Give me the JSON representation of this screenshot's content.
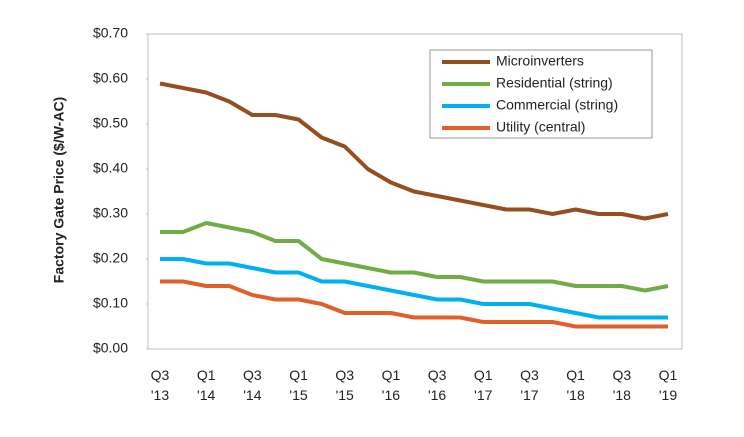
{
  "chart_data": {
    "type": "line",
    "y_label": "Factory Gate Price ($/W-AC)",
    "categories": [
      "Q3 '13",
      null,
      "Q1 '14",
      null,
      "Q3 '14",
      null,
      "Q1 '15",
      null,
      "Q3 '15",
      null,
      "Q1 '16",
      null,
      "Q3 '16",
      null,
      "Q1 '17",
      null,
      "Q3 '17",
      null,
      "Q1 '18",
      null,
      "Q3 '18",
      null,
      "Q1 '19"
    ],
    "series": [
      {
        "name": "Microinverters",
        "color": "#954f1f",
        "values": [
          0.59,
          0.58,
          0.57,
          0.55,
          0.52,
          0.52,
          0.51,
          0.47,
          0.45,
          0.4,
          0.37,
          0.35,
          0.34,
          0.33,
          0.32,
          0.31,
          0.31,
          0.3,
          0.31,
          0.3,
          0.3,
          0.29,
          0.3
        ]
      },
      {
        "name": "Residential (string)",
        "color": "#70ad47",
        "values": [
          0.26,
          0.26,
          0.28,
          0.27,
          0.26,
          0.24,
          0.24,
          0.2,
          0.19,
          0.18,
          0.17,
          0.17,
          0.16,
          0.16,
          0.15,
          0.15,
          0.15,
          0.15,
          0.14,
          0.14,
          0.14,
          0.13,
          0.14
        ]
      },
      {
        "name": "Commercial (string)",
        "color": "#00b0f0",
        "values": [
          0.2,
          0.2,
          0.19,
          0.19,
          0.18,
          0.17,
          0.17,
          0.15,
          0.15,
          0.14,
          0.13,
          0.12,
          0.11,
          0.11,
          0.1,
          0.1,
          0.1,
          0.09,
          0.08,
          0.07,
          0.07,
          0.07,
          0.07
        ]
      },
      {
        "name": "Utility (central)",
        "color": "#e0602a",
        "values": [
          0.15,
          0.15,
          0.14,
          0.14,
          0.12,
          0.11,
          0.11,
          0.1,
          0.08,
          0.08,
          0.08,
          0.07,
          0.07,
          0.07,
          0.06,
          0.06,
          0.06,
          0.06,
          0.05,
          0.05,
          0.05,
          0.05,
          0.05
        ]
      }
    ],
    "ylim": [
      0,
      0.7
    ],
    "yticks": [
      {
        "value": 0,
        "label": "$0.00"
      },
      {
        "value": 0.1,
        "label": "$0.10"
      },
      {
        "value": 0.2,
        "label": "$0.20"
      },
      {
        "value": 0.3,
        "label": "$0.30"
      },
      {
        "value": 0.4,
        "label": "$0.40"
      },
      {
        "value": 0.5,
        "label": "$0.50"
      },
      {
        "value": 0.6,
        "label": "$0.60"
      },
      {
        "value": 0.7,
        "label": "$0.70"
      }
    ],
    "grid": false,
    "legend": "top-right"
  }
}
